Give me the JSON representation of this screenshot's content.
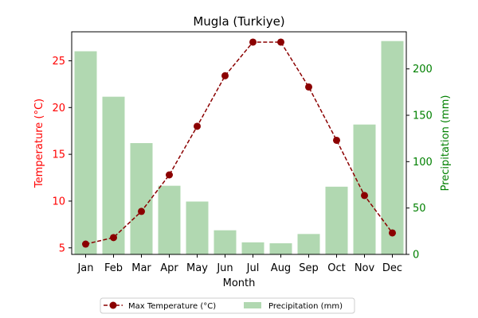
{
  "chart_data": {
    "type": "bar+line",
    "title": "Mugla (Turkiye)",
    "xlabel": "Month",
    "categories": [
      "Jan",
      "Feb",
      "Mar",
      "Apr",
      "May",
      "Jun",
      "Jul",
      "Aug",
      "Sep",
      "Oct",
      "Nov",
      "Dec"
    ],
    "left_axis": {
      "label": "Temperature (°C)",
      "color": "#ff0000",
      "ylim": [
        4.3,
        28.1
      ],
      "ticks": [
        5,
        10,
        15,
        20,
        25
      ]
    },
    "right_axis": {
      "label": "Precipitation (mm)",
      "color": "#008000",
      "ylim": [
        0,
        240
      ],
      "ticks": [
        0,
        50,
        100,
        150,
        200
      ]
    },
    "series": [
      {
        "name": "Max Temperature (°C)",
        "type": "line",
        "axis": "left",
        "color": "#8b0000",
        "line_style": "dashed",
        "marker": "circle",
        "values": [
          5.4,
          6.1,
          8.9,
          12.8,
          18.0,
          23.4,
          27.0,
          27.0,
          22.2,
          16.5,
          10.6,
          6.6
        ]
      },
      {
        "name": "Precipitation (mm)",
        "type": "bar",
        "axis": "right",
        "color": "#b1d8b1",
        "values": [
          219,
          170,
          120,
          74,
          57,
          26,
          13,
          12,
          22,
          73,
          140,
          230
        ]
      }
    ],
    "legend": {
      "placement": "bottom-center",
      "columns": 2
    },
    "grid": false
  }
}
